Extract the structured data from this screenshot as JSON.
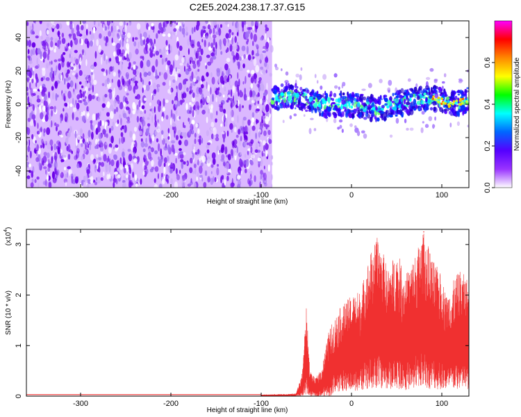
{
  "figure": {
    "title": "C2E5.2024.238.17.37.G15",
    "colors": {
      "snr_line": "#f03030",
      "spectrogram_dense": "#6a00e8",
      "spectrogram_light": "#c9a8f8"
    }
  },
  "chart_data": [
    {
      "type": "heatmap",
      "name": "spectrogram",
      "xlabel": "Height of straight line (km)",
      "ylabel": "Frequency (Hz)",
      "xlim": [
        -360,
        130
      ],
      "ylim": [
        -50,
        50
      ],
      "xticks": [
        -300,
        -200,
        -100,
        0,
        100
      ],
      "xtick_labels": [
        "-300",
        "-200",
        "-100",
        "0",
        "100"
      ],
      "yticks": [
        -40,
        -20,
        0,
        20,
        40
      ],
      "ytick_labels": [
        "-40",
        "-20",
        "0",
        "20",
        "40"
      ],
      "noise_region_x": [
        -360,
        -88
      ],
      "signal_region_x": [
        -88,
        130
      ],
      "signal_centerline": [
        {
          "x": -88,
          "y": 3
        },
        {
          "x": -70,
          "y": 5
        },
        {
          "x": -50,
          "y": 3
        },
        {
          "x": -30,
          "y": 0
        },
        {
          "x": -10,
          "y": 0
        },
        {
          "x": 10,
          "y": -1
        },
        {
          "x": 30,
          "y": -3
        },
        {
          "x": 50,
          "y": 0
        },
        {
          "x": 70,
          "y": 3
        },
        {
          "x": 90,
          "y": 4
        },
        {
          "x": 110,
          "y": 0
        },
        {
          "x": 130,
          "y": 2
        }
      ],
      "colorbar": {
        "label": "Normalized spectral amplitude",
        "range": [
          0.0,
          0.8
        ],
        "ticks": [
          0.0,
          0.2,
          0.4,
          0.6
        ],
        "tick_labels": [
          "0.0",
          "0.2",
          "0.4",
          "0.6"
        ],
        "colors": [
          "#ff00ff",
          "#ff0000",
          "#ff8800",
          "#ffff00",
          "#00ff00",
          "#00ffff",
          "#0066ff",
          "#5500ff",
          "#9933ff",
          "#ffffff"
        ]
      },
      "grid": false
    },
    {
      "type": "line",
      "name": "snr",
      "xlabel": "Height of straight line (km)",
      "ylabel": "SNR (10 * v/v)",
      "scale_label": "(x10",
      "scale_exponent": "4",
      "scale_close": ")",
      "xlim": [
        -360,
        130
      ],
      "ylim": [
        0,
        3.3
      ],
      "xticks": [
        -300,
        -200,
        -100,
        0,
        100
      ],
      "xtick_labels": [
        "-300",
        "-200",
        "-100",
        "0",
        "100"
      ],
      "yticks": [
        0,
        1,
        2,
        3
      ],
      "ytick_labels": [
        "0",
        "1",
        "2",
        "3"
      ],
      "baseline": 0.03,
      "peak": {
        "x": 80,
        "y": 3.25
      },
      "envelope": [
        {
          "x": -360,
          "y": 0.03
        },
        {
          "x": -100,
          "y": 0.03
        },
        {
          "x": -62,
          "y": 0.05
        },
        {
          "x": -55,
          "y": 0.4
        },
        {
          "x": -50,
          "y": 1.75
        },
        {
          "x": -46,
          "y": 0.5
        },
        {
          "x": -40,
          "y": 0.35
        },
        {
          "x": -33,
          "y": 0.55
        },
        {
          "x": -25,
          "y": 1.3
        },
        {
          "x": -15,
          "y": 1.7
        },
        {
          "x": 0,
          "y": 2.0
        },
        {
          "x": 10,
          "y": 2.1
        },
        {
          "x": 20,
          "y": 2.8
        },
        {
          "x": 30,
          "y": 3.2
        },
        {
          "x": 40,
          "y": 2.5
        },
        {
          "x": 50,
          "y": 2.9
        },
        {
          "x": 60,
          "y": 2.4
        },
        {
          "x": 70,
          "y": 2.8
        },
        {
          "x": 80,
          "y": 3.25
        },
        {
          "x": 90,
          "y": 2.7
        },
        {
          "x": 100,
          "y": 2.4
        },
        {
          "x": 105,
          "y": 2.0
        },
        {
          "x": 110,
          "y": 2.2
        },
        {
          "x": 120,
          "y": 2.5
        },
        {
          "x": 130,
          "y": 2.3
        }
      ],
      "grid": false
    }
  ]
}
